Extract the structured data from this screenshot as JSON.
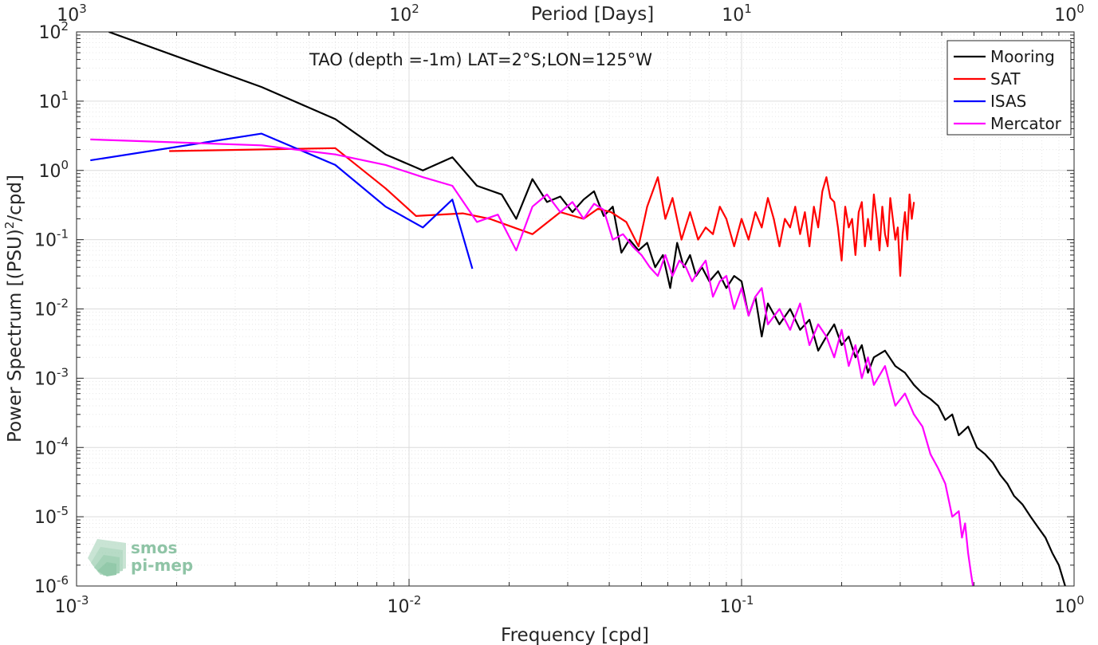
{
  "chart_data": {
    "type": "line",
    "annotation": "TAO (depth =-1m) LAT=2°S;LON=125°W",
    "xlabel": "Frequency [cpd]",
    "ylabel_main": "Power Spectrum [(PSU)",
    "ylabel_sup": "2",
    "ylabel_tail": "/cpd]",
    "top_axis_label": "Period [Days]",
    "x_scale": "log",
    "y_scale": "log",
    "xlim": [
      0.001,
      1
    ],
    "ylim": [
      1e-06,
      100
    ],
    "grid": true,
    "legend_position": "top-right",
    "x_ticks": [
      {
        "value": 0.001,
        "base": "10",
        "exp": "-3"
      },
      {
        "value": 0.01,
        "base": "10",
        "exp": "-2"
      },
      {
        "value": 0.1,
        "base": "10",
        "exp": "-1"
      },
      {
        "value": 1,
        "base": "10",
        "exp": "0"
      }
    ],
    "y_ticks": [
      {
        "value": 1e-06,
        "base": "10",
        "exp": "-6"
      },
      {
        "value": 1e-05,
        "base": "10",
        "exp": "-5"
      },
      {
        "value": 0.0001,
        "base": "10",
        "exp": "-4"
      },
      {
        "value": 0.001,
        "base": "10",
        "exp": "-3"
      },
      {
        "value": 0.01,
        "base": "10",
        "exp": "-2"
      },
      {
        "value": 0.1,
        "base": "10",
        "exp": "-1"
      },
      {
        "value": 1,
        "base": "10",
        "exp": "0"
      },
      {
        "value": 10,
        "base": "10",
        "exp": "1"
      },
      {
        "value": 100,
        "base": "10",
        "exp": "2"
      }
    ],
    "top_ticks": [
      {
        "period": 1000,
        "base": "10",
        "exp": "3"
      },
      {
        "period": 100,
        "base": "10",
        "exp": "2"
      },
      {
        "period": 10,
        "base": "10",
        "exp": "1"
      },
      {
        "period": 1,
        "base": "10",
        "exp": "0"
      }
    ],
    "series": [
      {
        "name": "Mooring",
        "color": "#000000",
        "x": [
          0.00125,
          0.0036,
          0.006,
          0.0085,
          0.011,
          0.0135,
          0.016,
          0.019,
          0.021,
          0.0235,
          0.026,
          0.0285,
          0.031,
          0.0335,
          0.036,
          0.0385,
          0.041,
          0.0435,
          0.046,
          0.049,
          0.052,
          0.055,
          0.058,
          0.061,
          0.064,
          0.067,
          0.07,
          0.073,
          0.076,
          0.08,
          0.085,
          0.09,
          0.095,
          0.1,
          0.105,
          0.11,
          0.115,
          0.12,
          0.13,
          0.14,
          0.15,
          0.16,
          0.17,
          0.18,
          0.19,
          0.2,
          0.21,
          0.22,
          0.23,
          0.24,
          0.25,
          0.27,
          0.29,
          0.31,
          0.33,
          0.35,
          0.37,
          0.39,
          0.41,
          0.43,
          0.45,
          0.48,
          0.51,
          0.54,
          0.57,
          0.6,
          0.63,
          0.66,
          0.7,
          0.74,
          0.78,
          0.82,
          0.86,
          0.9,
          0.94
        ],
        "y": [
          100,
          16,
          5.5,
          1.7,
          1.0,
          1.55,
          0.6,
          0.45,
          0.2,
          0.75,
          0.35,
          0.42,
          0.25,
          0.38,
          0.5,
          0.22,
          0.3,
          0.065,
          0.1,
          0.07,
          0.09,
          0.04,
          0.06,
          0.02,
          0.09,
          0.04,
          0.06,
          0.03,
          0.04,
          0.025,
          0.035,
          0.02,
          0.03,
          0.025,
          0.008,
          0.015,
          0.004,
          0.012,
          0.006,
          0.01,
          0.005,
          0.007,
          0.0025,
          0.004,
          0.006,
          0.003,
          0.004,
          0.002,
          0.003,
          0.0012,
          0.002,
          0.0025,
          0.0015,
          0.0012,
          0.0008,
          0.0006,
          0.0005,
          0.0004,
          0.00025,
          0.0003,
          0.00015,
          0.0002,
          0.0001,
          8e-05,
          6e-05,
          4e-05,
          3e-05,
          2e-05,
          1.5e-05,
          1e-05,
          7e-06,
          5e-06,
          3e-06,
          2e-06,
          1e-06
        ]
      },
      {
        "name": "SAT",
        "color": "#ff0000",
        "x": [
          0.0019,
          0.006,
          0.0085,
          0.0105,
          0.0145,
          0.0175,
          0.0235,
          0.0285,
          0.0335,
          0.037,
          0.0405,
          0.045,
          0.049,
          0.052,
          0.056,
          0.059,
          0.062,
          0.066,
          0.07,
          0.074,
          0.078,
          0.082,
          0.086,
          0.09,
          0.095,
          0.1,
          0.105,
          0.11,
          0.115,
          0.12,
          0.125,
          0.13,
          0.135,
          0.14,
          0.145,
          0.15,
          0.155,
          0.16,
          0.165,
          0.17,
          0.175,
          0.18,
          0.185,
          0.19,
          0.195,
          0.2,
          0.205,
          0.21,
          0.215,
          0.22,
          0.225,
          0.23,
          0.235,
          0.24,
          0.245,
          0.25,
          0.255,
          0.26,
          0.265,
          0.27,
          0.275,
          0.28,
          0.285,
          0.29,
          0.295,
          0.3,
          0.305,
          0.31,
          0.315,
          0.32,
          0.325,
          0.33
        ],
        "y": [
          1.9,
          2.1,
          0.55,
          0.22,
          0.24,
          0.2,
          0.12,
          0.25,
          0.2,
          0.28,
          0.25,
          0.18,
          0.08,
          0.3,
          0.8,
          0.2,
          0.4,
          0.1,
          0.25,
          0.1,
          0.15,
          0.12,
          0.3,
          0.2,
          0.08,
          0.2,
          0.1,
          0.25,
          0.15,
          0.4,
          0.2,
          0.08,
          0.2,
          0.15,
          0.3,
          0.12,
          0.25,
          0.08,
          0.3,
          0.15,
          0.5,
          0.8,
          0.4,
          0.35,
          0.15,
          0.05,
          0.3,
          0.15,
          0.2,
          0.06,
          0.25,
          0.35,
          0.08,
          0.2,
          0.1,
          0.45,
          0.2,
          0.07,
          0.3,
          0.12,
          0.08,
          0.4,
          0.2,
          0.1,
          0.15,
          0.03,
          0.12,
          0.25,
          0.1,
          0.45,
          0.2,
          0.35
        ]
      },
      {
        "name": "ISAS",
        "color": "#0000ff",
        "x": [
          0.0011,
          0.0036,
          0.006,
          0.0085,
          0.011,
          0.0135,
          0.0155
        ],
        "y": [
          1.4,
          3.4,
          1.2,
          0.3,
          0.15,
          0.38,
          0.038
        ]
      },
      {
        "name": "Mercator",
        "color": "#ff00ff",
        "x": [
          0.0011,
          0.0036,
          0.006,
          0.0085,
          0.011,
          0.0135,
          0.016,
          0.0185,
          0.021,
          0.0235,
          0.026,
          0.0285,
          0.031,
          0.0335,
          0.036,
          0.0385,
          0.041,
          0.044,
          0.047,
          0.05,
          0.053,
          0.056,
          0.059,
          0.062,
          0.065,
          0.068,
          0.071,
          0.074,
          0.078,
          0.082,
          0.086,
          0.09,
          0.095,
          0.1,
          0.105,
          0.11,
          0.115,
          0.12,
          0.13,
          0.14,
          0.15,
          0.16,
          0.17,
          0.18,
          0.19,
          0.2,
          0.21,
          0.22,
          0.23,
          0.24,
          0.25,
          0.27,
          0.29,
          0.31,
          0.33,
          0.35,
          0.37,
          0.39,
          0.41,
          0.43,
          0.45,
          0.46,
          0.47,
          0.48,
          0.49,
          0.5
        ],
        "y": [
          2.8,
          2.3,
          1.7,
          1.2,
          0.8,
          0.6,
          0.18,
          0.23,
          0.07,
          0.3,
          0.45,
          0.25,
          0.35,
          0.2,
          0.33,
          0.27,
          0.1,
          0.12,
          0.08,
          0.06,
          0.04,
          0.03,
          0.06,
          0.03,
          0.05,
          0.04,
          0.025,
          0.035,
          0.05,
          0.015,
          0.025,
          0.03,
          0.01,
          0.02,
          0.008,
          0.015,
          0.02,
          0.006,
          0.01,
          0.005,
          0.012,
          0.003,
          0.006,
          0.004,
          0.002,
          0.005,
          0.0015,
          0.003,
          0.001,
          0.002,
          0.0008,
          0.0015,
          0.0004,
          0.0006,
          0.0003,
          0.0002,
          8e-05,
          5e-05,
          3e-05,
          1e-05,
          1.2e-05,
          5e-06,
          8e-06,
          3e-06,
          1.5e-06,
          8e-07
        ]
      }
    ]
  },
  "logo": {
    "line1": "smos",
    "line2": "pi-mep"
  }
}
